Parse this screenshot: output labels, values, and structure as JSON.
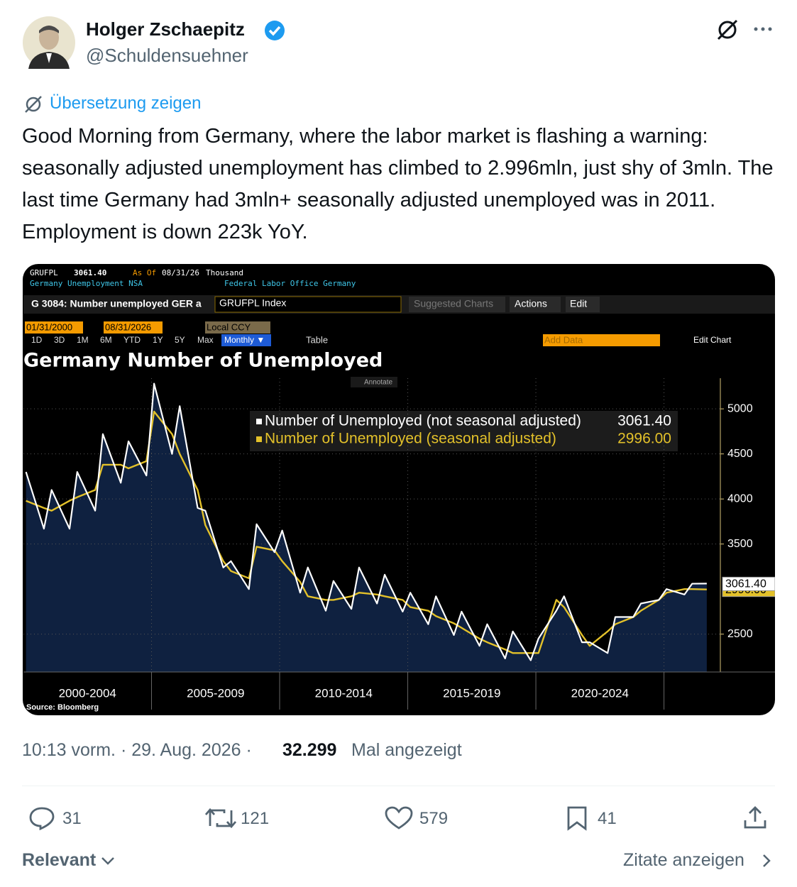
{
  "tweet": {
    "author": "Holger Zschaepitz",
    "handle": "@Schuldensuehner",
    "translate": "Übersetzung zeigen",
    "text": "Good Morning from Germany, where the labor market is flashing a warning: seasonally adjusted unemployment has climbed to 2.996mln, just shy of 3mln. The last time Germany had 3mln+ seasonally adjusted unemployed was in 2011. Employment is down 223k YoY.",
    "timestamp": "10:13 vorm. · 29. Aug. 2026 ·",
    "views": "32.299",
    "views_label": "Mal angezeigt",
    "replies": "31",
    "reposts": "121",
    "likes": "579",
    "bookmarks": "41",
    "sort": "Relevant",
    "quotes": "Zitate anzeigen"
  },
  "terminal": {
    "ticker": "GRUFPL",
    "last": "3061.40",
    "as_of": "As Of",
    "as_of_date": "08/31/26",
    "units": "Thousand",
    "description": "Germany Unemployment NSA",
    "source_org": "Federal Labor Office Germany",
    "chart_id": "G 3084: Number unemployed GER a",
    "security": "GRUFPL Index",
    "suggested": "Suggested Charts",
    "actions": "Actions",
    "edit": "Edit",
    "start_date": "01/31/2000",
    "end_date": "08/31/2026",
    "currency": "Local CCY",
    "periods": [
      "1D",
      "3D",
      "1M",
      "6M",
      "YTD",
      "1Y",
      "5Y",
      "Max"
    ],
    "frequency": "Monthly ▼",
    "table": "Table",
    "add_data": "Add Data",
    "edit_chart": "Edit Chart",
    "annotate": "Annotate",
    "source": "Source: Bloomberg"
  },
  "chart_data": {
    "type": "line",
    "title": "Germany Number of Unemployed",
    "x": [
      2000.1,
      2000.8,
      2001.1,
      2001.8,
      2002.1,
      2002.8,
      2003.1,
      2003.8,
      2004.1,
      2004.8,
      2005.1,
      2005.8,
      2006.1,
      2006.8,
      2007.1,
      2007.8,
      2008.1,
      2008.8,
      2009.1,
      2009.8,
      2010.1,
      2010.8,
      2011.1,
      2011.8,
      2012.1,
      2012.8,
      2013.1,
      2013.8,
      2014.1,
      2014.8,
      2015.1,
      2015.8,
      2016.1,
      2016.8,
      2017.1,
      2017.8,
      2018.1,
      2018.8,
      2019.1,
      2019.8,
      2020.1,
      2020.8,
      2021.1,
      2021.8,
      2022.1,
      2022.8,
      2023.1,
      2023.8,
      2024.1,
      2024.8,
      2025.1,
      2025.8,
      2026.1,
      2026.67
    ],
    "series": [
      {
        "name": "Number of Unemployed (not seasonal adjusted)",
        "color": "#ffffff",
        "last_label": "3061.40",
        "values": [
          4300,
          3670,
          4100,
          3670,
          4300,
          3870,
          4720,
          4180,
          4640,
          4260,
          5280,
          4500,
          5030,
          3900,
          3870,
          3240,
          3310,
          3000,
          3720,
          3410,
          3650,
          2960,
          3240,
          2760,
          3090,
          2780,
          3240,
          2840,
          3160,
          2750,
          2960,
          2610,
          2920,
          2490,
          2750,
          2370,
          2610,
          2230,
          2530,
          2210,
          2450,
          2760,
          2920,
          2410,
          2410,
          2290,
          2690,
          2690,
          2840,
          2880,
          3000,
          2940,
          3060,
          3061.4
        ]
      },
      {
        "name": "Number of Unemployed (seasonal adjusted)",
        "color": "#e3c12a",
        "last_label": "2996.00",
        "values": [
          3980,
          3900,
          3870,
          3980,
          4020,
          4100,
          4380,
          4380,
          4340,
          4420,
          4970,
          4720,
          4500,
          4100,
          3710,
          3310,
          3200,
          3120,
          3470,
          3430,
          3310,
          3080,
          2920,
          2880,
          2880,
          2920,
          2960,
          2940,
          2920,
          2880,
          2800,
          2760,
          2700,
          2620,
          2570,
          2450,
          2410,
          2330,
          2290,
          2290,
          2290,
          2880,
          2800,
          2490,
          2370,
          2530,
          2610,
          2690,
          2760,
          2880,
          2960,
          3000,
          3000,
          2996
        ]
      }
    ],
    "xlim": [
      2000,
      2027.2
    ],
    "xticks": [
      {
        "value": 2002.5,
        "label": "2000-2004"
      },
      {
        "value": 2007.5,
        "label": "2005-2009"
      },
      {
        "value": 2012.5,
        "label": "2010-2014"
      },
      {
        "value": 2017.5,
        "label": "2015-2019"
      },
      {
        "value": 2022.5,
        "label": "2020-2024"
      }
    ],
    "ylim": [
      2080,
      5340
    ],
    "yticks": [
      2500,
      3500,
      4000,
      4500,
      5000
    ],
    "grid": true
  }
}
